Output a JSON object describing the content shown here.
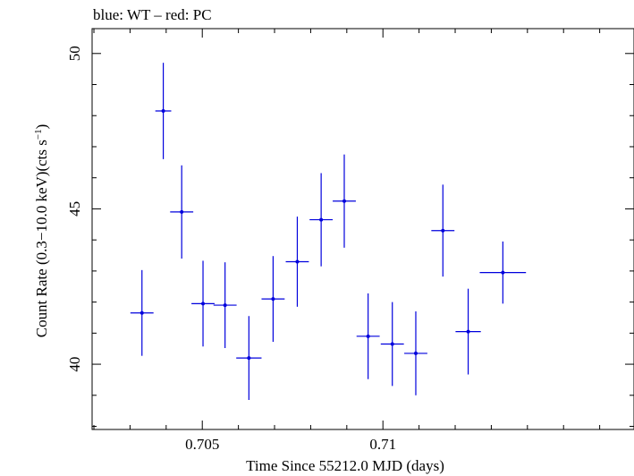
{
  "chart_data": {
    "type": "scatter",
    "title": "blue: WT – red: PC",
    "xlabel": "Time Since 55212.0 MJD (days)",
    "ylabel_main": "Count Rate (0.3−10.0 keV)(cts s",
    "ylabel_sup": "−1",
    "ylabel_close": ")",
    "xlim": [
      0.70195,
      0.71695
    ],
    "ylim": [
      37.9,
      50.8
    ],
    "x_ticks": [
      {
        "value": 0.705,
        "label": "0.705"
      },
      {
        "value": 0.71,
        "label": "0.71"
      }
    ],
    "x_minor_ticks": [
      0.702,
      0.703,
      0.704,
      0.706,
      0.707,
      0.708,
      0.709,
      0.711,
      0.712,
      0.713,
      0.714,
      0.715,
      0.716
    ],
    "y_ticks": [
      {
        "value": 40,
        "label": "40"
      },
      {
        "value": 45,
        "label": "45"
      },
      {
        "value": 50,
        "label": "50"
      }
    ],
    "y_minor_ticks": [
      38,
      39,
      41,
      42,
      43,
      44,
      46,
      47,
      48,
      49
    ],
    "series": [
      {
        "color": "#0000dd",
        "points": [
          {
            "x": 0.70333,
            "xerr": 0.00032,
            "y": 41.65,
            "yerr": 1.38
          },
          {
            "x": 0.70392,
            "xerr": 0.00022,
            "y": 48.15,
            "yerr": 1.55
          },
          {
            "x": 0.70443,
            "xerr": 0.00032,
            "y": 44.9,
            "yerr": 1.5
          },
          {
            "x": 0.70502,
            "xerr": 0.00032,
            "y": 41.95,
            "yerr": 1.38
          },
          {
            "x": 0.70563,
            "xerr": 0.00032,
            "y": 41.9,
            "yerr": 1.38
          },
          {
            "x": 0.70629,
            "xerr": 0.00035,
            "y": 40.2,
            "yerr": 1.35
          },
          {
            "x": 0.70696,
            "xerr": 0.00032,
            "y": 42.1,
            "yerr": 1.38
          },
          {
            "x": 0.70763,
            "xerr": 0.00032,
            "y": 43.3,
            "yerr": 1.45
          },
          {
            "x": 0.70829,
            "xerr": 0.00032,
            "y": 44.65,
            "yerr": 1.5
          },
          {
            "x": 0.70893,
            "xerr": 0.00032,
            "y": 45.25,
            "yerr": 1.5
          },
          {
            "x": 0.70959,
            "xerr": 0.00032,
            "y": 40.9,
            "yerr": 1.38
          },
          {
            "x": 0.71026,
            "xerr": 0.00032,
            "y": 40.65,
            "yerr": 1.35
          },
          {
            "x": 0.71091,
            "xerr": 0.00032,
            "y": 40.35,
            "yerr": 1.35
          },
          {
            "x": 0.71166,
            "xerr": 0.00032,
            "y": 44.3,
            "yerr": 1.48
          },
          {
            "x": 0.71236,
            "xerr": 0.00035,
            "y": 41.05,
            "yerr": 1.38
          },
          {
            "x": 0.71332,
            "xerr": 0.00064,
            "y": 42.95,
            "yerr": 1.0
          }
        ]
      }
    ]
  }
}
